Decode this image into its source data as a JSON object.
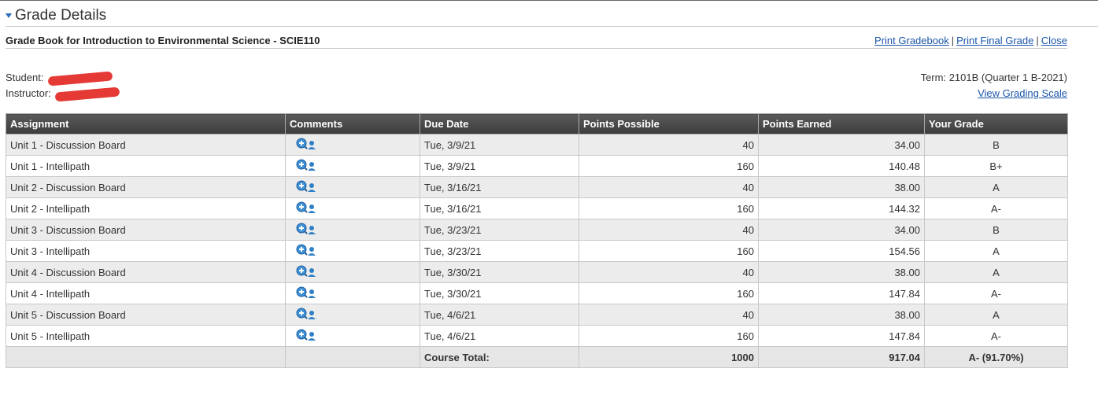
{
  "header": {
    "title": "Grade Details"
  },
  "gradebook": {
    "title": "Grade Book for Introduction to Environmental Science - SCIE110",
    "links": [
      "Print Gradebook",
      "Print Final Grade",
      "Close"
    ]
  },
  "info": {
    "student_label": "Student:",
    "instructor_label": "Instructor:",
    "term": "Term: 2101B (Quarter 1 B-2021)",
    "grading_scale_link": "View Grading Scale"
  },
  "table": {
    "columns": [
      "Assignment",
      "Comments",
      "Due Date",
      "Points Possible",
      "Points Earned",
      "Your Grade"
    ],
    "rows": [
      {
        "assignment": "Unit 1 - Discussion Board",
        "due": "Tue, 3/9/21",
        "possible": "40",
        "earned": "34.00",
        "grade": "B"
      },
      {
        "assignment": "Unit 1 - Intellipath",
        "due": "Tue, 3/9/21",
        "possible": "160",
        "earned": "140.48",
        "grade": "B+"
      },
      {
        "assignment": "Unit 2 - Discussion Board",
        "due": "Tue, 3/16/21",
        "possible": "40",
        "earned": "38.00",
        "grade": "A"
      },
      {
        "assignment": "Unit 2 - Intellipath",
        "due": "Tue, 3/16/21",
        "possible": "160",
        "earned": "144.32",
        "grade": "A-"
      },
      {
        "assignment": "Unit 3 - Discussion Board",
        "due": "Tue, 3/23/21",
        "possible": "40",
        "earned": "34.00",
        "grade": "B"
      },
      {
        "assignment": "Unit 3 - Intellipath",
        "due": "Tue, 3/23/21",
        "possible": "160",
        "earned": "154.56",
        "grade": "A"
      },
      {
        "assignment": "Unit 4 - Discussion Board",
        "due": "Tue, 3/30/21",
        "possible": "40",
        "earned": "38.00",
        "grade": "A"
      },
      {
        "assignment": "Unit 4 - Intellipath",
        "due": "Tue, 3/30/21",
        "possible": "160",
        "earned": "147.84",
        "grade": "A-"
      },
      {
        "assignment": "Unit 5 - Discussion Board",
        "due": "Tue, 4/6/21",
        "possible": "40",
        "earned": "38.00",
        "grade": "A"
      },
      {
        "assignment": "Unit 5 - Intellipath",
        "due": "Tue, 4/6/21",
        "possible": "160",
        "earned": "147.84",
        "grade": "A-"
      }
    ],
    "total": {
      "label": "Course Total:",
      "possible": "1000",
      "earned": "917.04",
      "grade": "A- (91.70%)"
    }
  },
  "icons": {
    "comment": "view-comments-icon",
    "caret": "caret-down-icon"
  },
  "colors": {
    "link": "#1a55a8",
    "header_bg": "#4a4a4a",
    "redaction": "#e53935"
  }
}
